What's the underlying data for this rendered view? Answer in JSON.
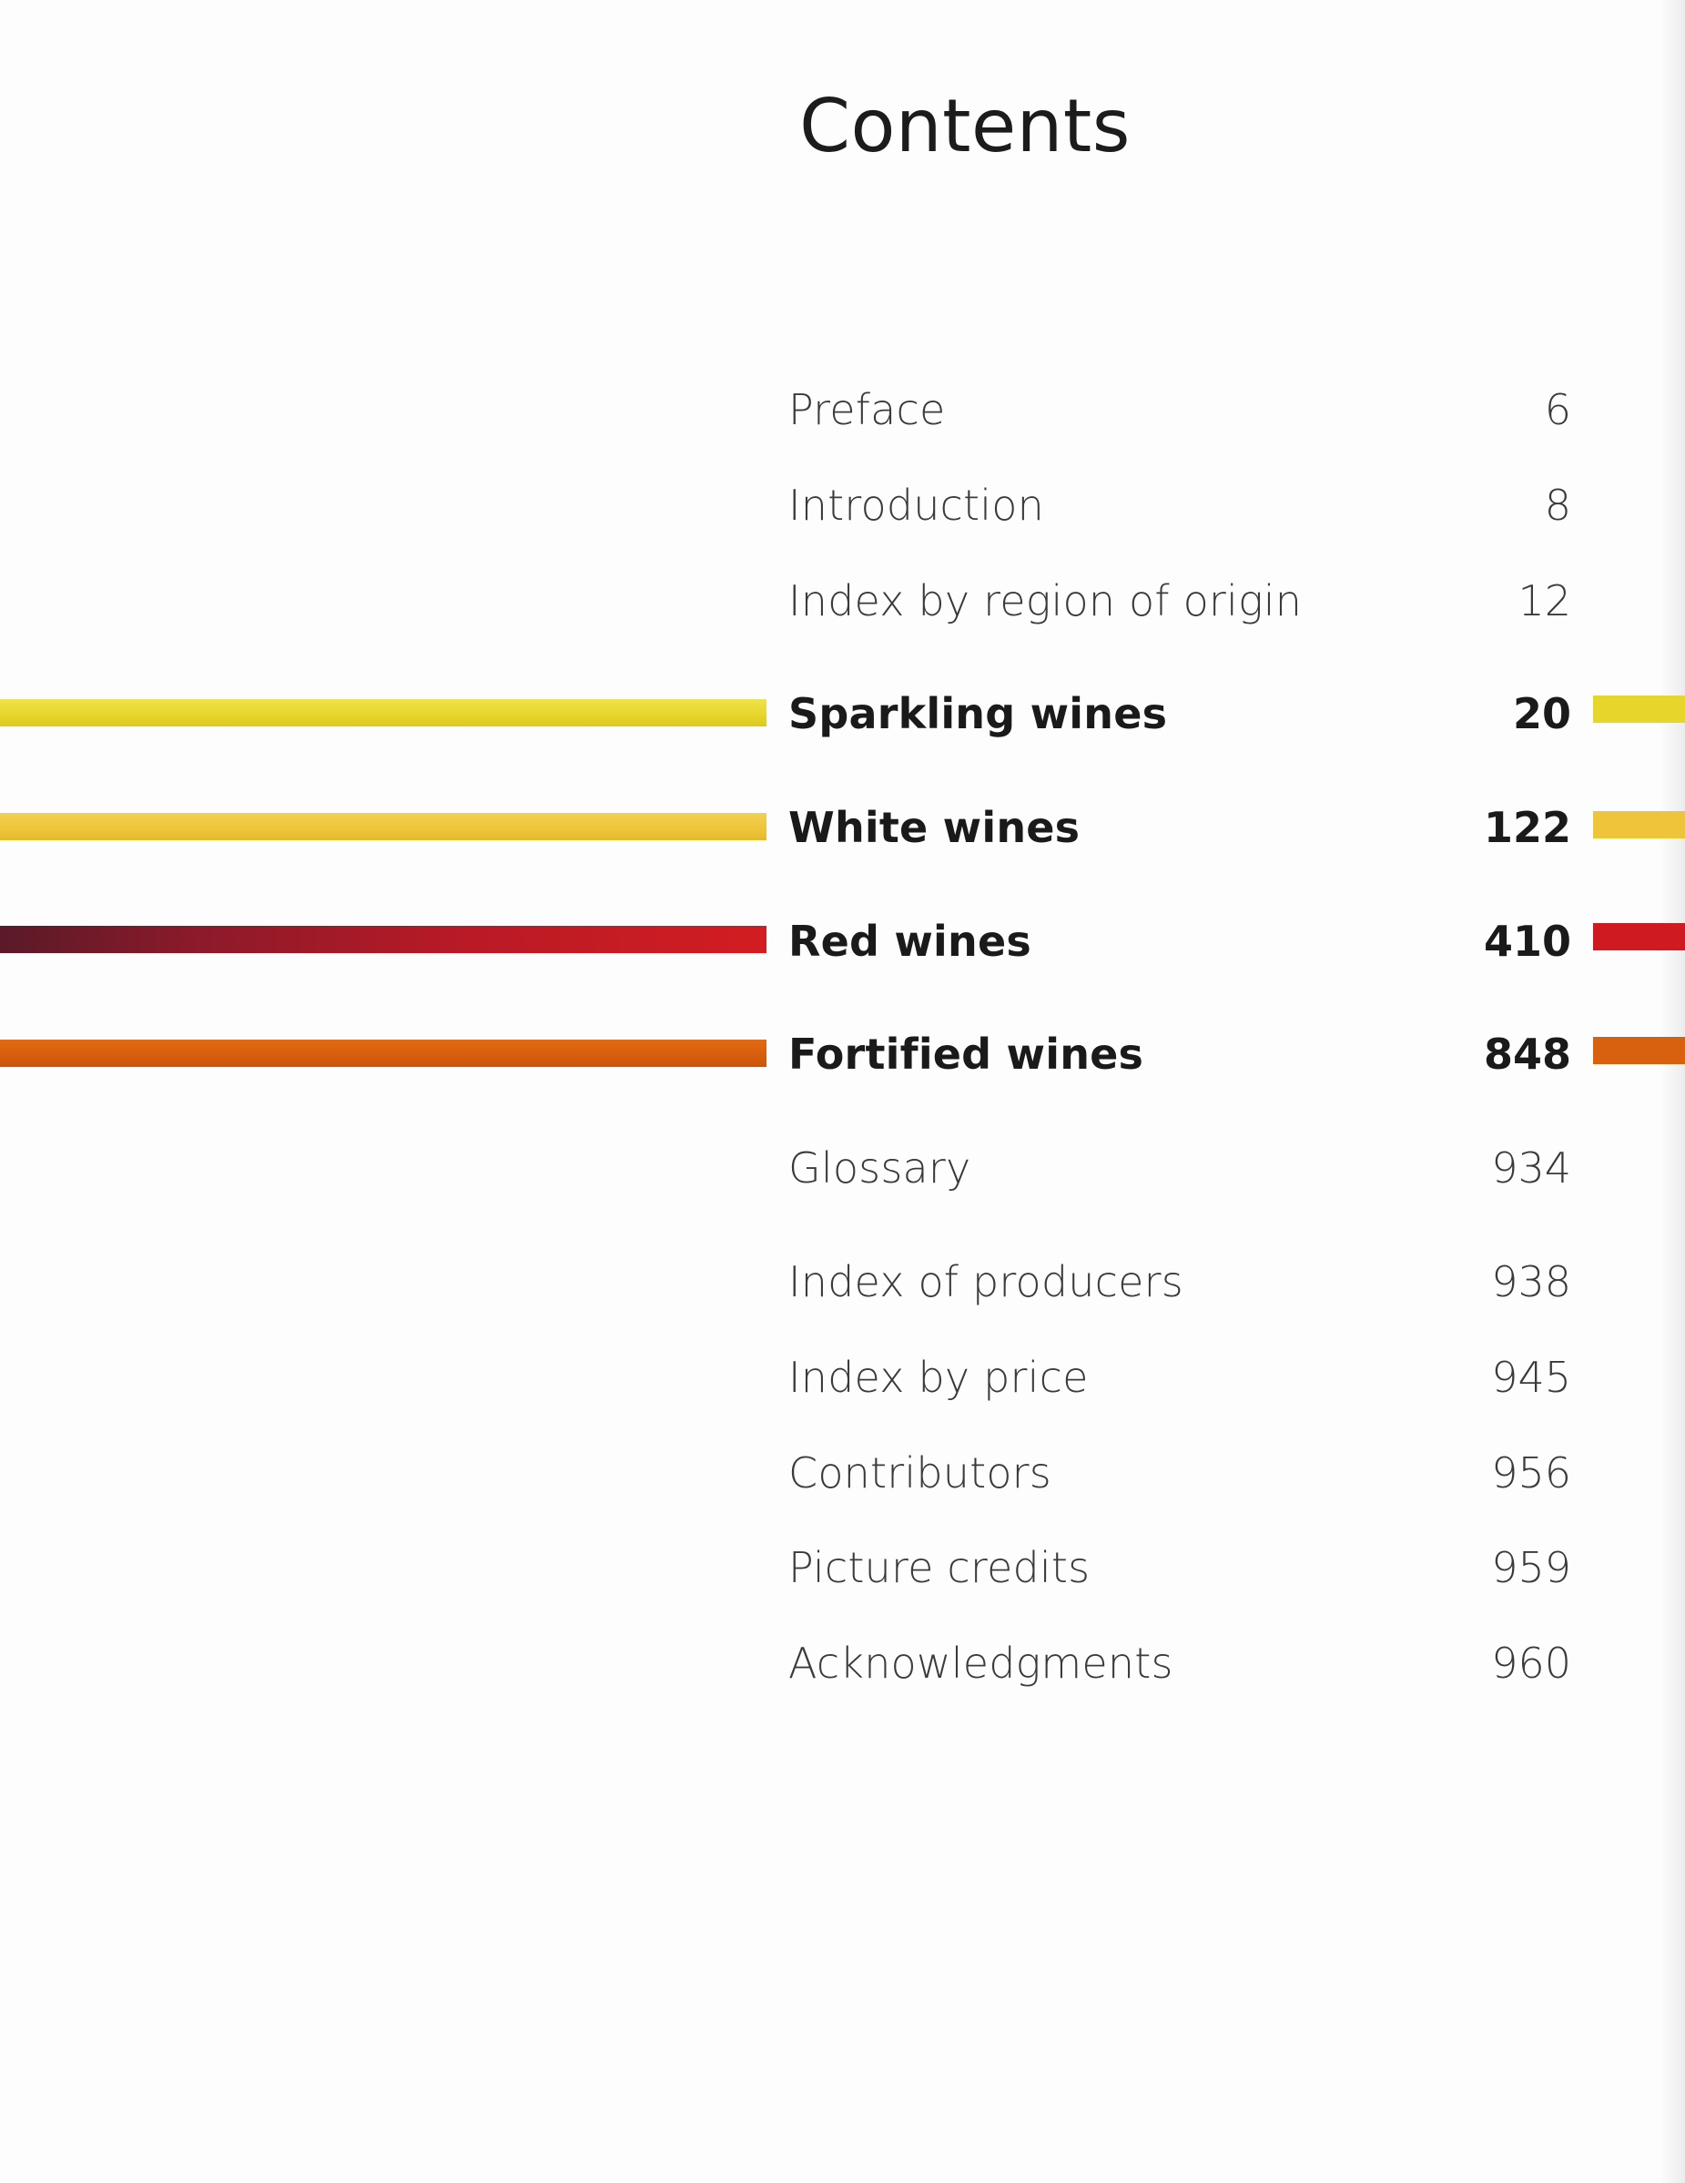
{
  "title": "Contents",
  "entries": [
    {
      "label": "Preface",
      "page": "6"
    },
    {
      "label": "Introduction",
      "page": "8"
    },
    {
      "label": "Index by region of origin",
      "page": "12"
    },
    {
      "label": "Sparkling wines",
      "page": "20",
      "color": "#e8d82e"
    },
    {
      "label": "White wines",
      "page": "122",
      "color": "#eec83a"
    },
    {
      "label": "Red wines",
      "page": "410",
      "color": "#cf1a22"
    },
    {
      "label": "Fortified wines",
      "page": "848",
      "color": "#d8600e"
    },
    {
      "label": "Glossary",
      "page": "934"
    },
    {
      "label": "Index of producers",
      "page": "938"
    },
    {
      "label": "Index by price",
      "page": "945"
    },
    {
      "label": "Contributors",
      "page": "956"
    },
    {
      "label": "Picture credits",
      "page": "959"
    },
    {
      "label": "Acknowledgments",
      "page": "960"
    }
  ]
}
